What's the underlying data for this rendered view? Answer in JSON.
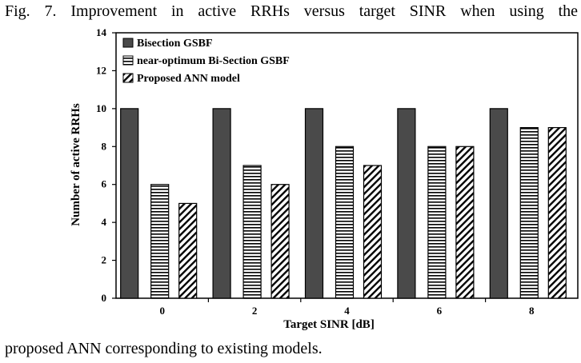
{
  "caption": {
    "top": "Fig. 7. Improvement in active RRHs versus target SINR when using the",
    "bottom": "proposed ANN corresponding to existing models."
  },
  "chart_data": {
    "type": "bar",
    "title": "",
    "xlabel": "Target SINR [dB]",
    "ylabel": "Number of active RRHs",
    "categories": [
      "0",
      "2",
      "4",
      "6",
      "8"
    ],
    "ylim": [
      0,
      14
    ],
    "yticks": [
      0,
      2,
      4,
      6,
      8,
      10,
      12,
      14
    ],
    "grid": false,
    "legend_position": "top-left",
    "series": [
      {
        "name": "Bisection GSBF",
        "values": [
          10,
          10,
          10,
          10,
          10
        ],
        "fill": "solid-dark-gray",
        "color": "#4a4a4a"
      },
      {
        "name": "near-optimum Bi-Section GSBF",
        "values": [
          6,
          7,
          8,
          8,
          9
        ],
        "fill": "horizontal-stripes",
        "color": "#000000"
      },
      {
        "name": "Proposed ANN model",
        "values": [
          5,
          6,
          7,
          8,
          9
        ],
        "fill": "diagonal-stripes",
        "color": "#000000"
      }
    ]
  }
}
